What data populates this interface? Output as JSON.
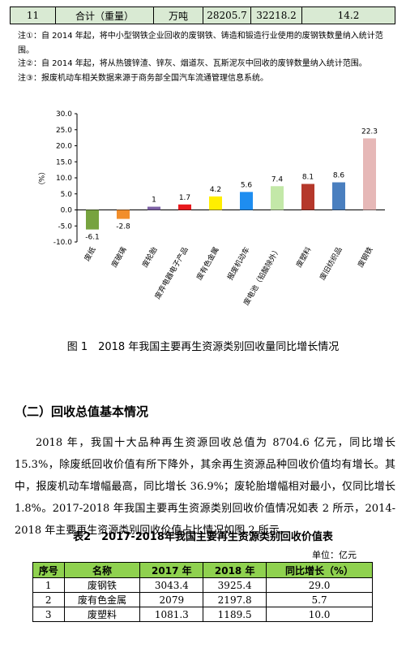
{
  "top_table": {
    "row": [
      "11",
      "合计（重量）",
      "万吨",
      "28205.7",
      "32218.2",
      "14.2"
    ]
  },
  "notes": [
    "注①：自 2014 年起，将中小型钢铁企业回收的废钢铁、铸造和锻造行业使用的废钢铁数量纳入统计范围。",
    "注②：自 2014 年起，将从热镀锌渣、锌灰、烟道灰、瓦斯泥灰中回收的废锌数量纳入统计范围。",
    "注③：报废机动车相关数据来源于商务部全国汽车流通管理信息系统。"
  ],
  "chart_data": {
    "type": "bar",
    "y_label": "（%）",
    "categories": [
      "废纸",
      "废玻璃",
      "废轮胎",
      "废弃电器电子产品",
      "废有色金属",
      "报废机动车",
      "废电池（铅酸除外）",
      "废塑料",
      "废旧纺织品",
      "废钢铁"
    ],
    "values": [
      -6.1,
      -2.8,
      1,
      1.7,
      4.2,
      5.6,
      7.4,
      8.1,
      8.6,
      22.3
    ],
    "colors": [
      "#77a33f",
      "#f28e2b",
      "#7e62a6",
      "#e8191d",
      "#ffee00",
      "#1e8df0",
      "#c3e8a8",
      "#b5382b",
      "#4a7fbf",
      "#e6b8b7"
    ],
    "ylim": [
      -10,
      30
    ],
    "yticks": [
      {
        "value": -10,
        "label": "-10.0"
      },
      {
        "value": -5,
        "label": "-5.0"
      },
      {
        "value": 0,
        "label": "0.0"
      },
      {
        "value": 5,
        "label": "5.0"
      },
      {
        "value": 10,
        "label": "10.0"
      },
      {
        "value": 15,
        "label": "15.0"
      },
      {
        "value": 20,
        "label": "20.0"
      },
      {
        "value": 25,
        "label": "25.0"
      },
      {
        "value": 30,
        "label": "30.0"
      }
    ]
  },
  "figure_caption": "图 1　2018 年我国主要再生资源类别回收量同比增长情况",
  "section_heading": "（二）回收总值基本情况",
  "paragraph": "2018 年，我国十大品种再生资源回收总值为 8704.6 亿元，同比增长 15.3%，除废纸回收价值有所下降外，其余再生资源品种回收价值均有增长。其中，报废机动车增幅最高，同比增长 36.9%；废轮胎增幅相对最小，仅同比增长 1.8%。2017-2018 年我国主要再生资源类别回收价值情况如表 2 所示，2014-2018 年主要再生资源类别回收价值占比情况如图 2 所示。",
  "table2": {
    "title": "表2　2017-2018年我国主要再生资源类别回收价值表",
    "unit": "单位：亿元",
    "header": [
      "序号",
      "名称",
      "2017 年",
      "2018 年",
      "同比增长（%）"
    ],
    "rows": [
      [
        "1",
        "废钢铁",
        "3043.4",
        "3925.4",
        "29.0"
      ],
      [
        "2",
        "废有色金属",
        "2079",
        "2197.8",
        "5.7"
      ],
      [
        "3",
        "废塑料",
        "1081.3",
        "1189.5",
        "10.0"
      ]
    ]
  }
}
